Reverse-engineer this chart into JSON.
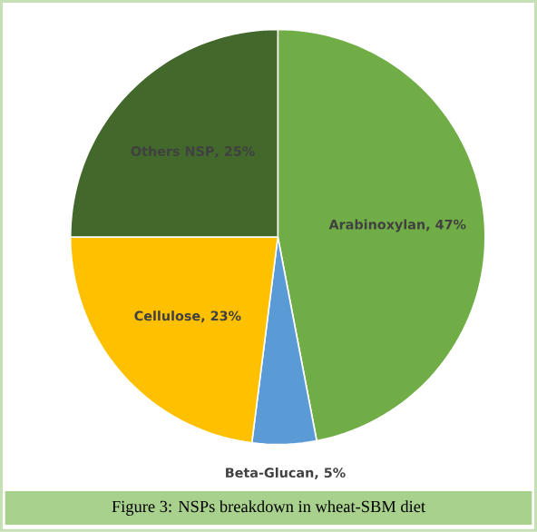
{
  "chart_data": {
    "type": "pie",
    "categories": [
      "Arabinoxylan",
      "Beta-Glucan",
      "Cellulose",
      "Others NSP"
    ],
    "values": [
      47,
      5,
      23,
      25
    ],
    "value_labels": [
      ", 47%",
      ", 5%",
      ", 23%",
      ", 25%"
    ],
    "colors": [
      "#70ad47",
      "#5b9bd5",
      "#ffc000",
      "#43682b"
    ],
    "annotations": [
      "Figure 3: NSPs breakdown in wheat-SBM diet"
    ]
  }
}
